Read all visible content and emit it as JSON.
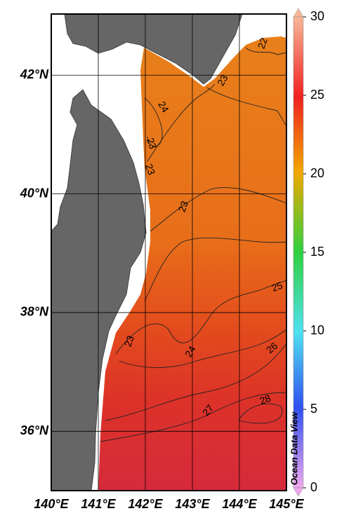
{
  "map": {
    "xlim": [
      140,
      145
    ],
    "ylim": [
      35,
      43.03
    ],
    "xticks": [
      {
        "value": 140,
        "label": "140°E"
      },
      {
        "value": 141,
        "label": "141°E"
      },
      {
        "value": 142,
        "label": "142°E"
      },
      {
        "value": 143,
        "label": "143°E"
      },
      {
        "value": 144,
        "label": "144°E"
      },
      {
        "value": 145,
        "label": "145°E"
      }
    ],
    "yticks": [
      {
        "value": 36,
        "label": "36°N"
      },
      {
        "value": 38,
        "label": "38°N"
      },
      {
        "value": 40,
        "label": "40°N"
      },
      {
        "value": 42,
        "label": "42°N"
      }
    ],
    "colorbar": {
      "lim": [
        0,
        30
      ],
      "ticks": [
        0,
        5,
        10,
        15,
        20,
        25,
        30
      ]
    },
    "contour_labels": [
      22,
      23,
      24,
      23,
      23,
      23,
      23,
      24,
      25,
      26,
      27,
      28
    ],
    "watermark": "Ocean Data View"
  }
}
